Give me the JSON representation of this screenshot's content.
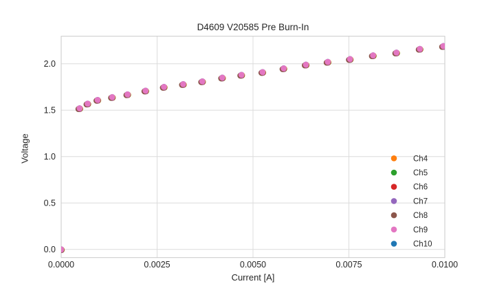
{
  "chart_data": {
    "type": "scatter",
    "title": "D4609 V20585 Pre Burn-In",
    "xlabel": "Current [A]",
    "ylabel": "Voltage",
    "xlim": [
      0.0,
      0.01
    ],
    "ylim": [
      -0.09,
      2.3
    ],
    "grid": true,
    "legend_position": "lower right",
    "xticks": {
      "values": [
        0.0,
        0.0025,
        0.005,
        0.0075,
        0.01
      ],
      "labels": [
        "0.0000",
        "0.0025",
        "0.0050",
        "0.0075",
        "0.0100"
      ]
    },
    "yticks": {
      "values": [
        0.0,
        0.5,
        1.0,
        1.5,
        2.0
      ],
      "labels": [
        "0.0",
        "0.5",
        "1.0",
        "1.5",
        "2.0"
      ]
    },
    "x": [
      0.0,
      0.00048,
      0.00069,
      0.00095,
      0.00133,
      0.00173,
      0.0022,
      0.00268,
      0.00318,
      0.00368,
      0.0042,
      0.0047,
      0.00525,
      0.0058,
      0.00638,
      0.00695,
      0.00753,
      0.00813,
      0.00874,
      0.00935,
      0.00996
    ],
    "series": [
      {
        "name": "Ch4",
        "color": "#ff7f0e",
        "values": [
          0.0,
          1.52,
          1.57,
          1.61,
          1.64,
          1.67,
          1.71,
          1.75,
          1.78,
          1.81,
          1.85,
          1.88,
          1.91,
          1.95,
          1.99,
          2.02,
          2.05,
          2.09,
          2.12,
          2.16,
          2.19
        ]
      },
      {
        "name": "Ch5",
        "color": "#2ca02c",
        "values": [
          0.0,
          1.52,
          1.57,
          1.61,
          1.64,
          1.67,
          1.71,
          1.75,
          1.78,
          1.81,
          1.85,
          1.88,
          1.91,
          1.95,
          1.99,
          2.02,
          2.05,
          2.09,
          2.12,
          2.16,
          2.19
        ]
      },
      {
        "name": "Ch6",
        "color": "#d62728",
        "values": [
          0.0,
          1.52,
          1.57,
          1.61,
          1.64,
          1.67,
          1.71,
          1.75,
          1.78,
          1.81,
          1.85,
          1.88,
          1.91,
          1.95,
          1.99,
          2.02,
          2.05,
          2.09,
          2.12,
          2.16,
          2.19
        ]
      },
      {
        "name": "Ch7",
        "color": "#9467bd",
        "values": [
          0.0,
          1.52,
          1.57,
          1.61,
          1.64,
          1.67,
          1.71,
          1.75,
          1.78,
          1.81,
          1.85,
          1.88,
          1.91,
          1.95,
          1.99,
          2.02,
          2.05,
          2.09,
          2.12,
          2.16,
          2.19
        ]
      },
      {
        "name": "Ch8",
        "color": "#8c564b",
        "values": [
          0.0,
          1.52,
          1.57,
          1.61,
          1.64,
          1.67,
          1.71,
          1.75,
          1.78,
          1.81,
          1.85,
          1.88,
          1.91,
          1.95,
          1.99,
          2.02,
          2.05,
          2.09,
          2.12,
          2.16,
          2.19
        ]
      },
      {
        "name": "Ch9",
        "color": "#e377c2",
        "values": [
          0.0,
          1.52,
          1.57,
          1.61,
          1.64,
          1.67,
          1.71,
          1.75,
          1.78,
          1.81,
          1.85,
          1.88,
          1.91,
          1.95,
          1.99,
          2.02,
          2.05,
          2.09,
          2.12,
          2.16,
          2.19
        ]
      },
      {
        "name": "Ch10",
        "color": "#1f77b4",
        "values": [
          0.0,
          1.52,
          1.57,
          1.61,
          1.64,
          1.67,
          1.71,
          1.75,
          1.78,
          1.81,
          1.85,
          1.88,
          1.91,
          1.95,
          1.99,
          2.02,
          2.05,
          2.09,
          2.12,
          2.16,
          2.19
        ]
      }
    ],
    "colors": {
      "grid": "#dcdcdc",
      "border": "#c9c9c9",
      "text": "#262626",
      "background": "#ffffff"
    }
  }
}
